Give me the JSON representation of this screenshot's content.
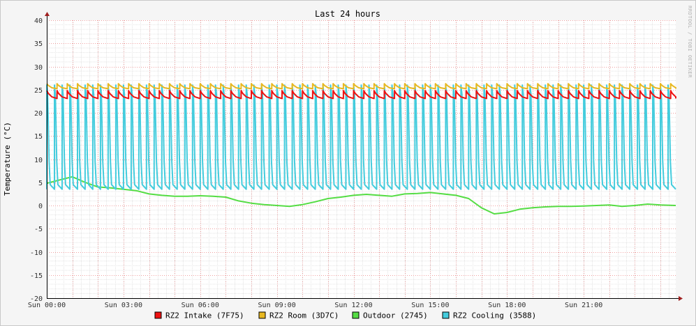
{
  "chart_data": {
    "type": "line",
    "title": "Last 24 hours",
    "xlabel": "",
    "ylabel": "Temperature (°C)",
    "watermark": "RRDTOOL / TOBI OETIKER",
    "ylim": [
      -20,
      40
    ],
    "yticks": [
      40,
      35,
      30,
      25,
      20,
      15,
      10,
      5,
      0,
      -5,
      -10,
      -15,
      -20
    ],
    "xlim_hours": [
      0,
      24.6
    ],
    "xticks": [
      {
        "label": "Sun 00:00",
        "hour": 0
      },
      {
        "label": "Sun 03:00",
        "hour": 3
      },
      {
        "label": "Sun 06:00",
        "hour": 6
      },
      {
        "label": "Sun 09:00",
        "hour": 9
      },
      {
        "label": "Sun 12:00",
        "hour": 12
      },
      {
        "label": "Sun 15:00",
        "hour": 15
      },
      {
        "label": "Sun 18:00",
        "hour": 18
      },
      {
        "label": "Sun 21:00",
        "hour": 21
      }
    ],
    "grid": true,
    "legend_position": "bottom",
    "series": [
      {
        "name": "RZ2 Intake (7F75)",
        "color": "#ee1111",
        "pattern": "sawtooth",
        "range": [
          23.1,
          24.8
        ],
        "period_hours": 0.4,
        "end_hour": 24.6
      },
      {
        "name": "RZ2 Room (3D7C)",
        "color": "#e8b820",
        "pattern": "sawtooth",
        "range": [
          25.2,
          26.3
        ],
        "period_hours": 0.4,
        "end_hour": 24.6
      },
      {
        "name": "Outdoor (2745)",
        "color": "#55dd44",
        "pattern": "line",
        "points": [
          [
            0,
            4.8
          ],
          [
            0.5,
            5.5
          ],
          [
            1.0,
            6.2
          ],
          [
            1.5,
            5.0
          ],
          [
            2.0,
            4.0
          ],
          [
            2.5,
            3.8
          ],
          [
            3.0,
            3.5
          ],
          [
            3.5,
            3.2
          ],
          [
            4.0,
            2.5
          ],
          [
            4.5,
            2.2
          ],
          [
            5.0,
            2.0
          ],
          [
            5.5,
            2.0
          ],
          [
            6.0,
            2.1
          ],
          [
            6.5,
            2.0
          ],
          [
            7.0,
            1.8
          ],
          [
            7.5,
            1.0
          ],
          [
            8.0,
            0.5
          ],
          [
            8.5,
            0.2
          ],
          [
            9.0,
            0.0
          ],
          [
            9.5,
            -0.2
          ],
          [
            10.0,
            0.2
          ],
          [
            10.5,
            0.8
          ],
          [
            11.0,
            1.5
          ],
          [
            11.5,
            1.8
          ],
          [
            12.0,
            2.2
          ],
          [
            12.5,
            2.4
          ],
          [
            13.0,
            2.2
          ],
          [
            13.5,
            2.0
          ],
          [
            14.0,
            2.5
          ],
          [
            14.5,
            2.6
          ],
          [
            15.0,
            2.8
          ],
          [
            15.5,
            2.5
          ],
          [
            16.0,
            2.2
          ],
          [
            16.5,
            1.5
          ],
          [
            17.0,
            -0.5
          ],
          [
            17.5,
            -1.8
          ],
          [
            18.0,
            -1.5
          ],
          [
            18.5,
            -0.8
          ],
          [
            19.0,
            -0.5
          ],
          [
            19.5,
            -0.3
          ],
          [
            20.0,
            -0.2
          ],
          [
            20.5,
            -0.2
          ],
          [
            21.0,
            -0.1
          ],
          [
            21.5,
            0.0
          ],
          [
            22.0,
            0.1
          ],
          [
            22.5,
            -0.2
          ],
          [
            23.0,
            0.0
          ],
          [
            23.5,
            0.3
          ],
          [
            24.0,
            0.1
          ],
          [
            24.6,
            0.0
          ]
        ]
      },
      {
        "name": "RZ2 Cooling (3588)",
        "color": "#44ccdd",
        "pattern": "pulses",
        "low": 3.5,
        "high": 26.0,
        "period_hours": 0.3,
        "end_hour": 24.6
      }
    ]
  }
}
